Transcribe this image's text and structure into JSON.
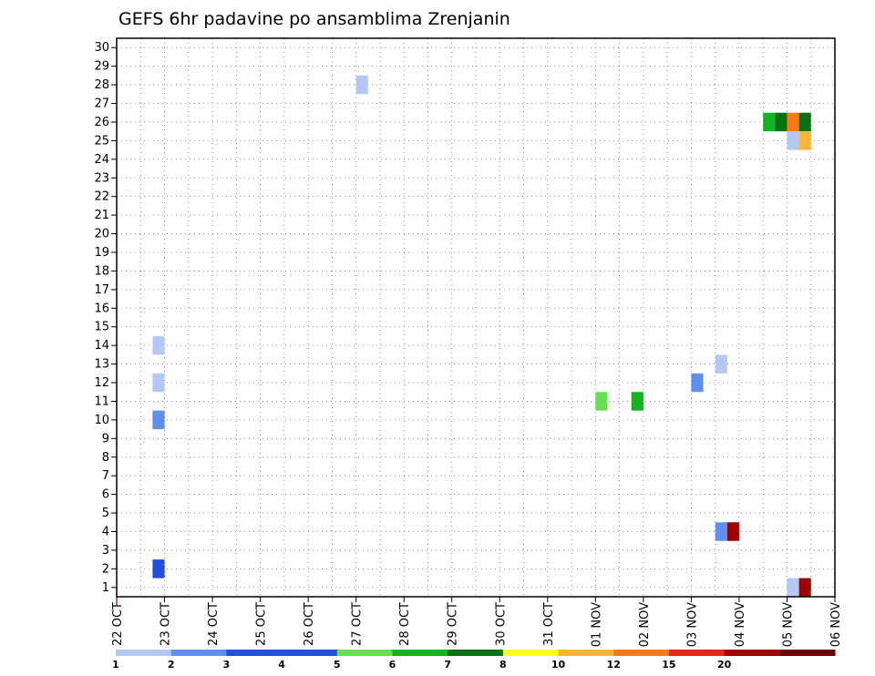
{
  "chart_data": {
    "type": "heatmap",
    "title": "GEFS 6hr padavine po ansamblima Zrenjanin",
    "y_ticks": [
      "1",
      "2",
      "3",
      "4",
      "5",
      "6",
      "7",
      "8",
      "9",
      "10",
      "11",
      "12",
      "13",
      "14",
      "15",
      "16",
      "17",
      "18",
      "19",
      "20",
      "21",
      "22",
      "23",
      "24",
      "25",
      "26",
      "27",
      "28",
      "29",
      "30"
    ],
    "ylim": [
      0.5,
      30.5
    ],
    "x_ticks": [
      "22 OCT",
      "23 OCT",
      "24 OCT",
      "25 OCT",
      "26 OCT",
      "27 OCT",
      "28 OCT",
      "29 OCT",
      "30 OCT",
      "31 OCT",
      "01 NOV",
      "02 NOV",
      "03 NOV",
      "04 NOV",
      "05 NOV",
      "06 NOV"
    ],
    "xlim_days": [
      0,
      15
    ],
    "grid": "dotted",
    "colorbar": {
      "labels": [
        "1",
        "2",
        "3",
        "4",
        "5",
        "6",
        "7",
        "8",
        "10",
        "12",
        "15",
        "20"
      ],
      "colors": [
        "#b4c8f5",
        "#5f8ff0",
        "#1f4fe0",
        "#1f4fe0",
        "#66e04d",
        "#0fb41e",
        "#0a7014",
        "#ffff1e",
        "#ffb432",
        "#ff7814",
        "#e02814",
        "#a00000",
        "#6e0000"
      ]
    },
    "cells": [
      {
        "member": 2,
        "day": 0.75,
        "color": "#1f4fe0"
      },
      {
        "member": 10,
        "day": 0.75,
        "color": "#5f8ff0"
      },
      {
        "member": 12,
        "day": 0.75,
        "color": "#b4c8f5"
      },
      {
        "member": 14,
        "day": 0.75,
        "color": "#b4c8f5"
      },
      {
        "member": 28,
        "day": 5.0,
        "color": "#b4c8f5"
      },
      {
        "member": 11,
        "day": 10.0,
        "color": "#66e04d"
      },
      {
        "member": 11,
        "day": 10.75,
        "color": "#0fb41e"
      },
      {
        "member": 12,
        "day": 12.0,
        "color": "#5f8ff0"
      },
      {
        "member": 13,
        "day": 12.5,
        "color": "#b4c8f5"
      },
      {
        "member": 4,
        "day": 12.5,
        "color": "#5f8ff0"
      },
      {
        "member": 4,
        "day": 12.75,
        "color": "#a00000"
      },
      {
        "member": 26,
        "day": 13.5,
        "color": "#0fb41e"
      },
      {
        "member": 26,
        "day": 13.75,
        "color": "#0a7014"
      },
      {
        "member": 26,
        "day": 14.0,
        "color": "#ff7814"
      },
      {
        "member": 26,
        "day": 14.25,
        "color": "#0a7014"
      },
      {
        "member": 25,
        "day": 14.0,
        "color": "#b4c8f5"
      },
      {
        "member": 25,
        "day": 14.25,
        "color": "#ffb432"
      },
      {
        "member": 1,
        "day": 14.0,
        "color": "#b4c8f5"
      },
      {
        "member": 1,
        "day": 14.25,
        "color": "#a00000"
      }
    ]
  }
}
